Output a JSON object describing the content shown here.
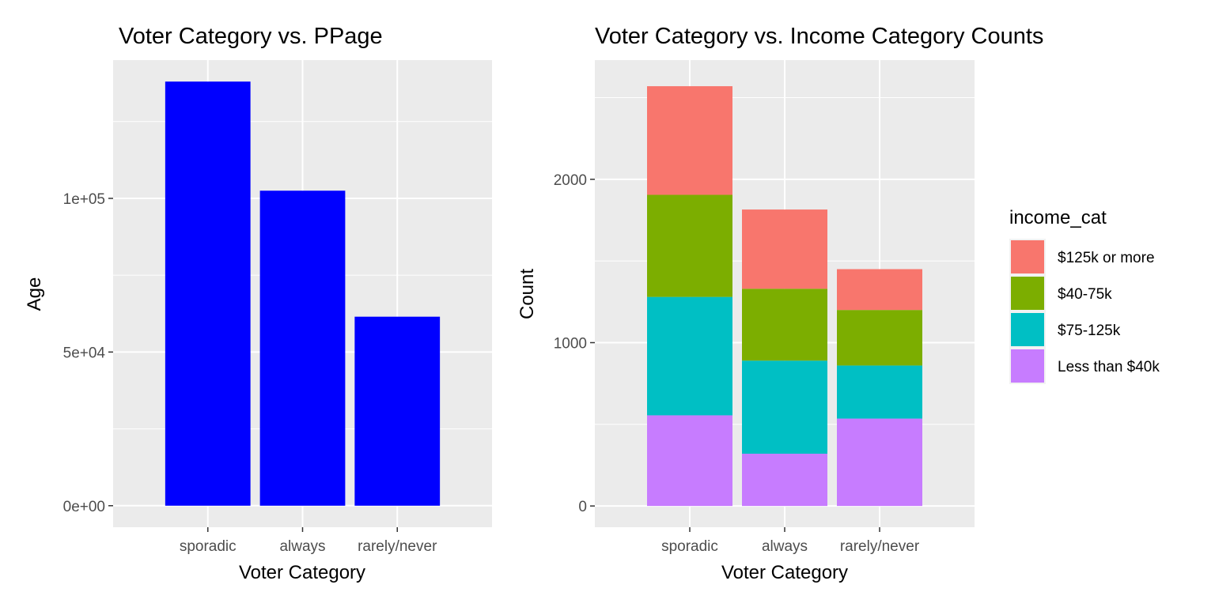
{
  "chart_data": [
    {
      "type": "bar",
      "title": "Voter Category vs. PPage",
      "xlabel": "Voter Category",
      "ylabel": "Age",
      "categories": [
        "sporadic",
        "always",
        "rarely/never"
      ],
      "values": [
        138000,
        102500,
        61500
      ],
      "ylim": [
        -7000,
        145000
      ],
      "yticks": [
        0,
        50000,
        100000
      ],
      "ytick_labels": [
        "0e+00",
        "5e+04",
        "1e+05"
      ],
      "bar_color": "#0000FF",
      "grid": true
    },
    {
      "type": "bar",
      "stacked": true,
      "title": "Voter Category vs. Income Category Counts",
      "xlabel": "Voter Category",
      "ylabel": "Count",
      "categories": [
        "sporadic",
        "always",
        "rarely/never"
      ],
      "legend_title": "income_cat",
      "legend_position": "right",
      "series": [
        {
          "name": "Less than $40k",
          "color": "#C77CFF",
          "values": [
            555,
            320,
            535
          ]
        },
        {
          "name": "$75-125k",
          "color": "#00BFC4",
          "values": [
            725,
            570,
            325
          ]
        },
        {
          "name": "$40-75k",
          "color": "#7CAE00",
          "values": [
            625,
            440,
            340
          ]
        },
        {
          "name": "$125k or more",
          "color": "#F8766D",
          "values": [
            665,
            485,
            250
          ]
        }
      ],
      "legend_order": [
        "$125k or more",
        "$40-75k",
        "$75-125k",
        "Less than $40k"
      ],
      "ylim": [
        -130,
        2730
      ],
      "yticks": [
        0,
        1000,
        2000
      ],
      "ytick_labels": [
        "0",
        "1000",
        "2000"
      ],
      "grid": true
    }
  ]
}
